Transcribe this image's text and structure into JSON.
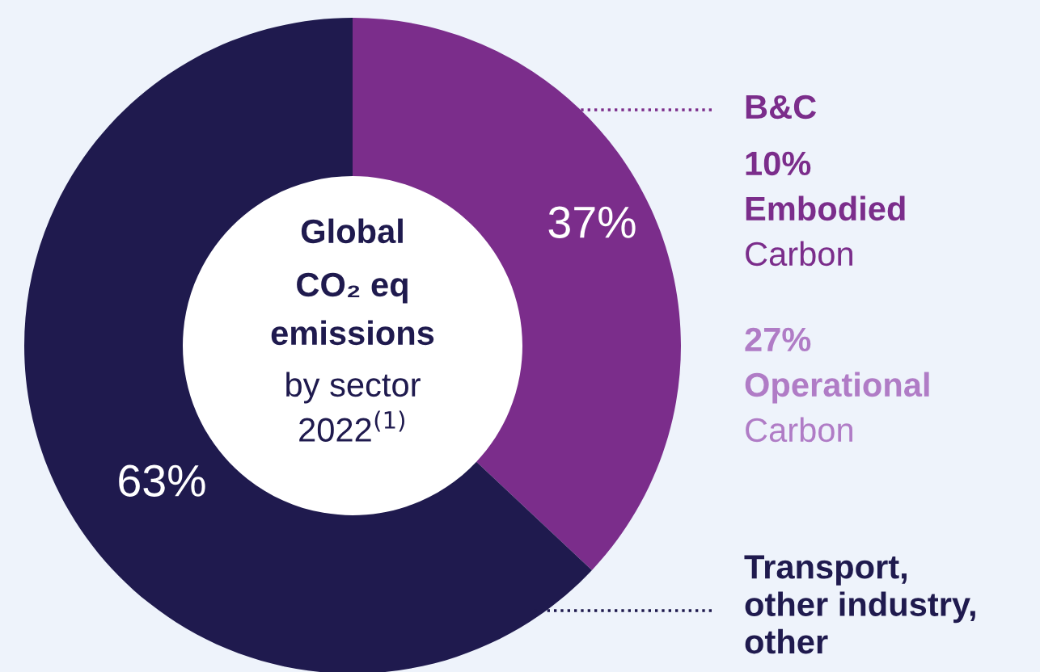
{
  "chart_data": {
    "type": "donut",
    "title": "Global\nCO₂ eq\nemissions\nby sector\n2022$^{(1)}$",
    "categories": [
      "B&C",
      "Transport,\nother industry,\nother"
    ],
    "values": [
      37,
      63
    ],
    "colors": [
      "#7b2d8b",
      "#1f1a4e"
    ],
    "value_labels": [
      "37%",
      "63%"
    ],
    "annotations": [
      "10%\nEmbodied\nCarbon",
      "27%\nOperational\nCarbon"
    ]
  }
}
